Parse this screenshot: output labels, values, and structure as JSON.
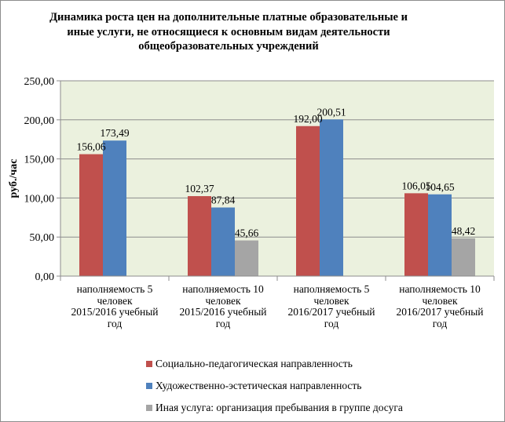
{
  "chart_data": {
    "type": "bar",
    "title": "Динамика роста цен на дополнительные платные образовательные и иные услуги, не относящиеся к основным видам деятельности общеобразовательных учреждений",
    "ylabel": "руб./час",
    "ylim": [
      0,
      250
    ],
    "yticks": [
      "0,00",
      "50,00",
      "100,00",
      "150,00",
      "200,00",
      "250,00"
    ],
    "grid": true,
    "legend_position": "bottom",
    "categories": [
      [
        "наполняемость  5",
        "человек",
        "2015/2016 учебный",
        "год"
      ],
      [
        "наполняемость  10",
        "человек",
        "2015/2016 учебный",
        "год"
      ],
      [
        "наполняемость  5",
        "человек",
        "2016/2017 учебный",
        "год"
      ],
      [
        "наполняемость  10",
        "человек",
        "2016/2017 учебный",
        "год"
      ]
    ],
    "series": [
      {
        "name": "Социально-педагогическая  направленность",
        "color": "#c0504d",
        "values": [
          156.06,
          102.37,
          192.0,
          106.05
        ],
        "labels": [
          "156,06",
          "102,37",
          "192,00",
          "106,05"
        ]
      },
      {
        "name": "Художественно-эстетическая  направленность",
        "color": "#4f81bd",
        "values": [
          173.49,
          87.84,
          200.51,
          104.65
        ],
        "labels": [
          "173,49",
          "87,84",
          "200,51",
          "104,65"
        ]
      },
      {
        "name": "Иная  услуга: организация  пребывания  в группе досуга",
        "color": "#a5a5a5",
        "values": [
          null,
          45.66,
          null,
          48.42
        ],
        "labels": [
          null,
          "45,66",
          null,
          "48,42"
        ]
      }
    ],
    "plot_background": "#ebf1de"
  }
}
